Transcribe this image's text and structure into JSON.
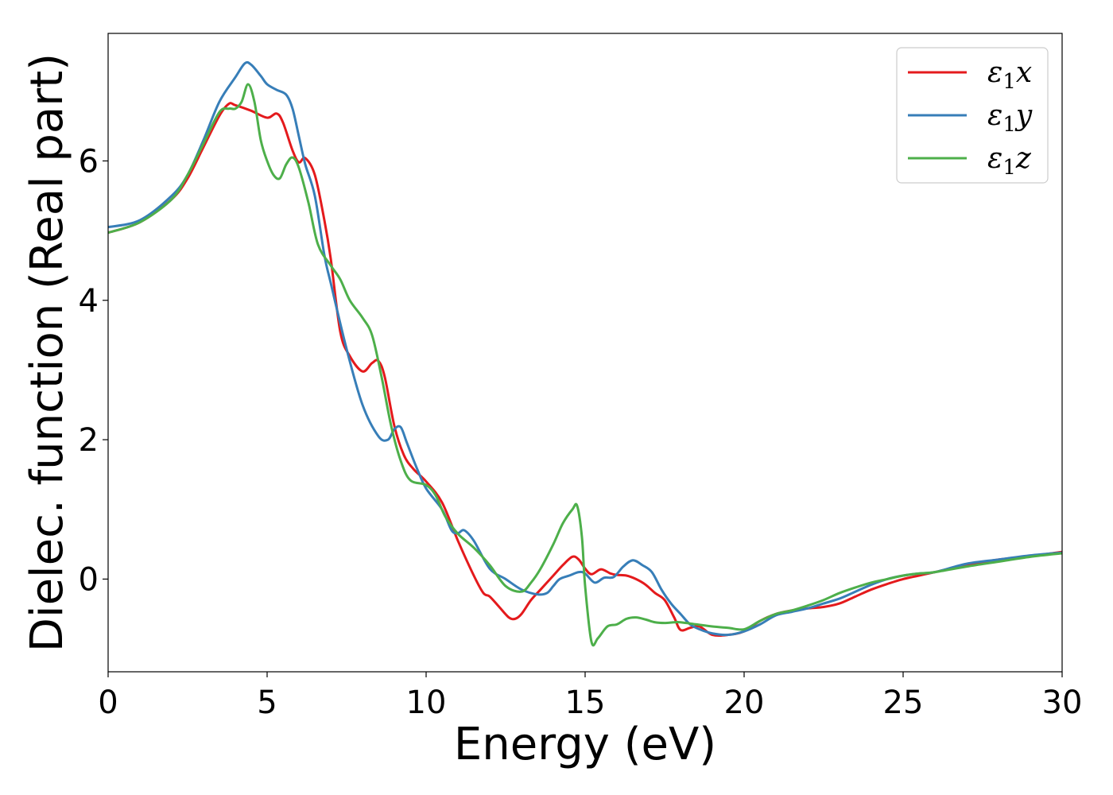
{
  "chart_data": {
    "type": "line",
    "title": "",
    "xlabel": "Energy (eV)",
    "ylabel": "Dielec. function (Real part)",
    "xlim": [
      0,
      30
    ],
    "ylim": [
      -1.33,
      7.83
    ],
    "xticks": [
      0,
      5,
      10,
      15,
      20,
      25,
      30
    ],
    "yticks": [
      0,
      2,
      4,
      6
    ],
    "grid": false,
    "legend_position": "top-right",
    "series": [
      {
        "name": "ε1x",
        "legend_main": "ε",
        "legend_sub": "1",
        "legend_var": "x",
        "color": "#e41a1c",
        "x": [
          0,
          1,
          2,
          2.5,
          3,
          3.5,
          3.8,
          4,
          4.5,
          5,
          5.3,
          5.5,
          5.8,
          6,
          6.2,
          6.5,
          6.8,
          7,
          7.3,
          7.6,
          8,
          8.3,
          8.5,
          8.7,
          9,
          9.3,
          9.6,
          10,
          10.5,
          11,
          11.5,
          11.8,
          12,
          12.3,
          12.6,
          12.8,
          13,
          13.3,
          13.6,
          14,
          14.3,
          14.6,
          14.8,
          15,
          15.2,
          15.5,
          15.8,
          16,
          16.3,
          16.6,
          16.9,
          17.2,
          17.5,
          17.8,
          18,
          18.3,
          18.6,
          19,
          19.5,
          20,
          20.5,
          21,
          21.5,
          22,
          22.5,
          23,
          23.5,
          24,
          24.5,
          25,
          25.5,
          26,
          27,
          28,
          29,
          30
        ],
        "y": [
          4.97,
          5.12,
          5.45,
          5.75,
          6.2,
          6.65,
          6.82,
          6.8,
          6.72,
          6.62,
          6.68,
          6.55,
          6.15,
          5.98,
          6.04,
          5.8,
          5.15,
          4.6,
          3.55,
          3.2,
          2.98,
          3.1,
          3.13,
          2.9,
          2.2,
          1.78,
          1.58,
          1.4,
          1.1,
          0.55,
          0.05,
          -0.2,
          -0.25,
          -0.4,
          -0.55,
          -0.57,
          -0.5,
          -0.3,
          -0.15,
          0.05,
          0.2,
          0.32,
          0.28,
          0.15,
          0.07,
          0.14,
          0.08,
          0.06,
          0.05,
          0.0,
          -0.08,
          -0.2,
          -0.3,
          -0.55,
          -0.73,
          -0.7,
          -0.68,
          -0.8,
          -0.8,
          -0.75,
          -0.6,
          -0.5,
          -0.45,
          -0.42,
          -0.4,
          -0.35,
          -0.25,
          -0.15,
          -0.07,
          0.0,
          0.05,
          0.1,
          0.2,
          0.28,
          0.33,
          0.39
        ]
      },
      {
        "name": "ε1y",
        "legend_main": "ε",
        "legend_sub": "1",
        "legend_var": "y",
        "color": "#377eb8",
        "x": [
          0,
          1,
          2,
          2.5,
          3,
          3.5,
          4,
          4.3,
          4.5,
          4.8,
          5,
          5.3,
          5.6,
          5.8,
          6,
          6.2,
          6.5,
          6.8,
          7,
          7.5,
          8,
          8.5,
          8.8,
          9,
          9.2,
          9.4,
          9.7,
          10,
          10.5,
          10.8,
          11,
          11.2,
          11.5,
          12,
          12.5,
          13,
          13.5,
          13.8,
          14,
          14.2,
          14.5,
          14.8,
          15,
          15.3,
          15.6,
          15.9,
          16.2,
          16.5,
          16.8,
          17.1,
          17.4,
          17.7,
          18,
          18.3,
          18.6,
          19,
          19.5,
          20,
          20.5,
          21,
          21.5,
          22,
          22.5,
          23,
          23.5,
          24,
          24.5,
          25,
          25.5,
          26,
          27,
          28,
          29,
          30
        ],
        "y": [
          5.05,
          5.15,
          5.5,
          5.8,
          6.3,
          6.85,
          7.2,
          7.4,
          7.38,
          7.22,
          7.1,
          7.02,
          6.95,
          6.75,
          6.35,
          5.95,
          5.5,
          4.65,
          4.25,
          3.3,
          2.5,
          2.05,
          2.0,
          2.15,
          2.18,
          1.95,
          1.6,
          1.3,
          1.0,
          0.7,
          0.66,
          0.7,
          0.55,
          0.15,
          0.0,
          -0.15,
          -0.22,
          -0.2,
          -0.1,
          0.0,
          0.05,
          0.1,
          0.08,
          -0.05,
          0.02,
          0.03,
          0.18,
          0.27,
          0.2,
          0.1,
          -0.15,
          -0.35,
          -0.5,
          -0.65,
          -0.72,
          -0.78,
          -0.8,
          -0.75,
          -0.65,
          -0.52,
          -0.47,
          -0.42,
          -0.35,
          -0.28,
          -0.18,
          -0.08,
          0.0,
          0.05,
          0.08,
          0.1,
          0.22,
          0.28,
          0.34,
          0.38
        ]
      },
      {
        "name": "ε1z",
        "legend_main": "ε",
        "legend_sub": "1",
        "legend_var": "z",
        "color": "#4daf4a",
        "x": [
          0,
          1,
          2,
          2.5,
          3,
          3.5,
          3.8,
          4,
          4.2,
          4.4,
          4.6,
          4.8,
          5,
          5.2,
          5.4,
          5.6,
          5.8,
          6,
          6.3,
          6.6,
          7,
          7.3,
          7.6,
          8,
          8.3,
          8.6,
          8.9,
          9.2,
          9.5,
          10,
          10.3,
          10.6,
          11,
          11.5,
          12,
          12.5,
          13,
          13.3,
          13.6,
          14,
          14.3,
          14.6,
          14.75,
          14.9,
          15,
          15.2,
          15.4,
          15.7,
          16,
          16.3,
          16.6,
          16.9,
          17.2,
          17.5,
          17.8,
          18,
          18.5,
          19,
          19.5,
          20,
          20.5,
          21,
          21.5,
          22,
          22.5,
          23,
          23.5,
          24,
          24.5,
          25,
          25.5,
          26,
          27,
          28,
          29,
          30
        ],
        "y": [
          4.97,
          5.12,
          5.45,
          5.8,
          6.25,
          6.7,
          6.75,
          6.75,
          6.85,
          7.1,
          6.85,
          6.3,
          6.0,
          5.8,
          5.75,
          5.95,
          6.05,
          5.9,
          5.4,
          4.8,
          4.5,
          4.3,
          4.0,
          3.75,
          3.5,
          2.9,
          2.2,
          1.7,
          1.42,
          1.35,
          1.2,
          0.9,
          0.65,
          0.45,
          0.2,
          -0.1,
          -0.18,
          -0.05,
          0.15,
          0.5,
          0.8,
          1.0,
          1.05,
          0.6,
          -0.1,
          -0.9,
          -0.85,
          -0.68,
          -0.65,
          -0.57,
          -0.55,
          -0.58,
          -0.62,
          -0.63,
          -0.62,
          -0.62,
          -0.65,
          -0.68,
          -0.7,
          -0.72,
          -0.6,
          -0.5,
          -0.45,
          -0.38,
          -0.3,
          -0.2,
          -0.12,
          -0.05,
          0.0,
          0.05,
          0.08,
          0.1,
          0.18,
          0.25,
          0.32,
          0.37
        ]
      }
    ]
  }
}
